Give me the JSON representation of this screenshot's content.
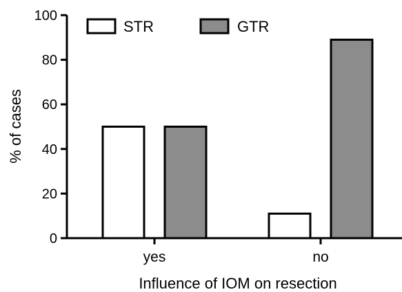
{
  "chart_data": {
    "type": "bar",
    "title": "",
    "xlabel": "Influence of IOM on resection",
    "ylabel": "% of cases",
    "categories": [
      "yes",
      "no"
    ],
    "series": [
      {
        "name": "STR",
        "values": [
          50,
          11
        ],
        "color": "#ffffff"
      },
      {
        "name": "GTR",
        "values": [
          50,
          89
        ],
        "color": "#8c8c8c"
      }
    ],
    "ylim": [
      0,
      100
    ],
    "yticks": [
      0,
      20,
      40,
      60,
      80,
      100
    ],
    "grid": false,
    "legend_position": "top-left"
  }
}
